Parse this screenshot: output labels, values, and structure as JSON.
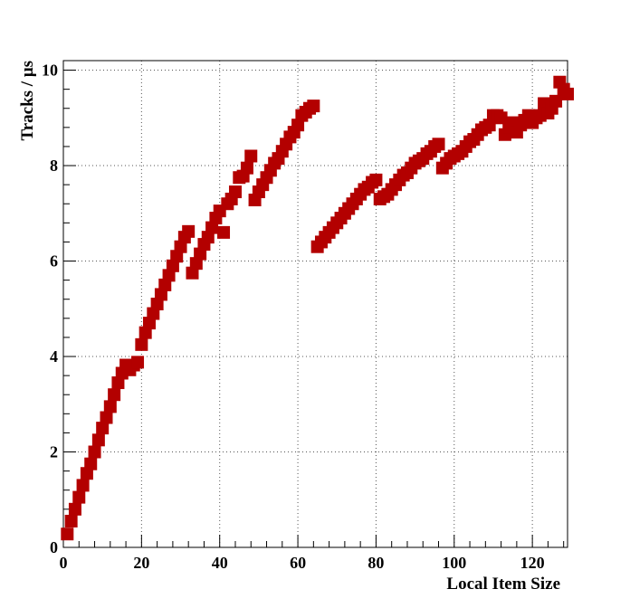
{
  "chart_data": {
    "type": "scatter",
    "xlabel": "Local Item Size",
    "ylabel": "Tracks / μs",
    "xlim": [
      0,
      129
    ],
    "ylim": [
      0,
      10.2
    ],
    "x_ticks": [
      0,
      20,
      40,
      60,
      80,
      100,
      120
    ],
    "y_ticks": [
      0,
      2,
      4,
      6,
      8,
      10
    ],
    "grid": true,
    "legend": "none",
    "marker": "square",
    "marker_color": "#b30000",
    "points": [
      [
        1,
        0.28
      ],
      [
        2,
        0.55
      ],
      [
        3,
        0.8
      ],
      [
        4,
        1.05
      ],
      [
        5,
        1.3
      ],
      [
        6,
        1.55
      ],
      [
        7,
        1.75
      ],
      [
        8,
        2.0
      ],
      [
        9,
        2.25
      ],
      [
        10,
        2.5
      ],
      [
        11,
        2.72
      ],
      [
        12,
        2.95
      ],
      [
        13,
        3.2
      ],
      [
        14,
        3.45
      ],
      [
        15,
        3.65
      ],
      [
        16,
        3.82
      ],
      [
        17,
        3.72
      ],
      [
        18,
        3.82
      ],
      [
        19,
        3.88
      ],
      [
        20,
        4.25
      ],
      [
        21,
        4.5
      ],
      [
        22,
        4.7
      ],
      [
        23,
        4.9
      ],
      [
        24,
        5.1
      ],
      [
        25,
        5.3
      ],
      [
        26,
        5.5
      ],
      [
        27,
        5.7
      ],
      [
        28,
        5.9
      ],
      [
        29,
        6.1
      ],
      [
        30,
        6.3
      ],
      [
        31,
        6.5
      ],
      [
        32,
        6.62
      ],
      [
        33,
        5.75
      ],
      [
        34,
        5.95
      ],
      [
        35,
        6.15
      ],
      [
        36,
        6.35
      ],
      [
        37,
        6.5
      ],
      [
        38,
        6.7
      ],
      [
        39,
        6.9
      ],
      [
        40,
        7.05
      ],
      [
        41,
        6.6
      ],
      [
        42,
        7.2
      ],
      [
        43,
        7.3
      ],
      [
        44,
        7.45
      ],
      [
        45,
        7.75
      ],
      [
        46,
        7.78
      ],
      [
        47,
        7.95
      ],
      [
        48,
        8.2
      ],
      [
        49,
        7.28
      ],
      [
        50,
        7.45
      ],
      [
        51,
        7.6
      ],
      [
        52,
        7.75
      ],
      [
        53,
        7.9
      ],
      [
        54,
        8.05
      ],
      [
        55,
        8.15
      ],
      [
        56,
        8.3
      ],
      [
        57,
        8.45
      ],
      [
        58,
        8.6
      ],
      [
        59,
        8.7
      ],
      [
        60,
        8.85
      ],
      [
        61,
        9.05
      ],
      [
        62,
        9.12
      ],
      [
        63,
        9.2
      ],
      [
        64,
        9.25
      ],
      [
        65,
        6.3
      ],
      [
        66,
        6.4
      ],
      [
        67,
        6.5
      ],
      [
        68,
        6.6
      ],
      [
        69,
        6.7
      ],
      [
        70,
        6.8
      ],
      [
        71,
        6.9
      ],
      [
        72,
        7.0
      ],
      [
        73,
        7.1
      ],
      [
        74,
        7.2
      ],
      [
        75,
        7.3
      ],
      [
        76,
        7.4
      ],
      [
        77,
        7.5
      ],
      [
        78,
        7.55
      ],
      [
        79,
        7.65
      ],
      [
        80,
        7.7
      ],
      [
        81,
        7.3
      ],
      [
        82,
        7.35
      ],
      [
        83,
        7.4
      ],
      [
        84,
        7.5
      ],
      [
        85,
        7.6
      ],
      [
        86,
        7.7
      ],
      [
        87,
        7.8
      ],
      [
        88,
        7.85
      ],
      [
        89,
        7.95
      ],
      [
        90,
        8.05
      ],
      [
        91,
        8.1
      ],
      [
        92,
        8.15
      ],
      [
        93,
        8.25
      ],
      [
        94,
        8.3
      ],
      [
        95,
        8.4
      ],
      [
        96,
        8.45
      ],
      [
        97,
        7.95
      ],
      [
        98,
        8.05
      ],
      [
        99,
        8.15
      ],
      [
        100,
        8.2
      ],
      [
        101,
        8.25
      ],
      [
        102,
        8.3
      ],
      [
        103,
        8.4
      ],
      [
        104,
        8.5
      ],
      [
        105,
        8.55
      ],
      [
        106,
        8.65
      ],
      [
        107,
        8.75
      ],
      [
        108,
        8.8
      ],
      [
        109,
        8.85
      ],
      [
        110,
        9.05
      ],
      [
        111,
        9.05
      ],
      [
        112,
        9.0
      ],
      [
        113,
        8.65
      ],
      [
        114,
        8.8
      ],
      [
        115,
        8.9
      ],
      [
        116,
        8.7
      ],
      [
        117,
        8.85
      ],
      [
        118,
        8.95
      ],
      [
        119,
        9.05
      ],
      [
        120,
        8.9
      ],
      [
        121,
        9.0
      ],
      [
        122,
        9.05
      ],
      [
        123,
        9.3
      ],
      [
        124,
        9.1
      ],
      [
        125,
        9.2
      ],
      [
        126,
        9.35
      ],
      [
        127,
        9.75
      ],
      [
        128,
        9.6
      ],
      [
        129,
        9.5
      ]
    ]
  }
}
